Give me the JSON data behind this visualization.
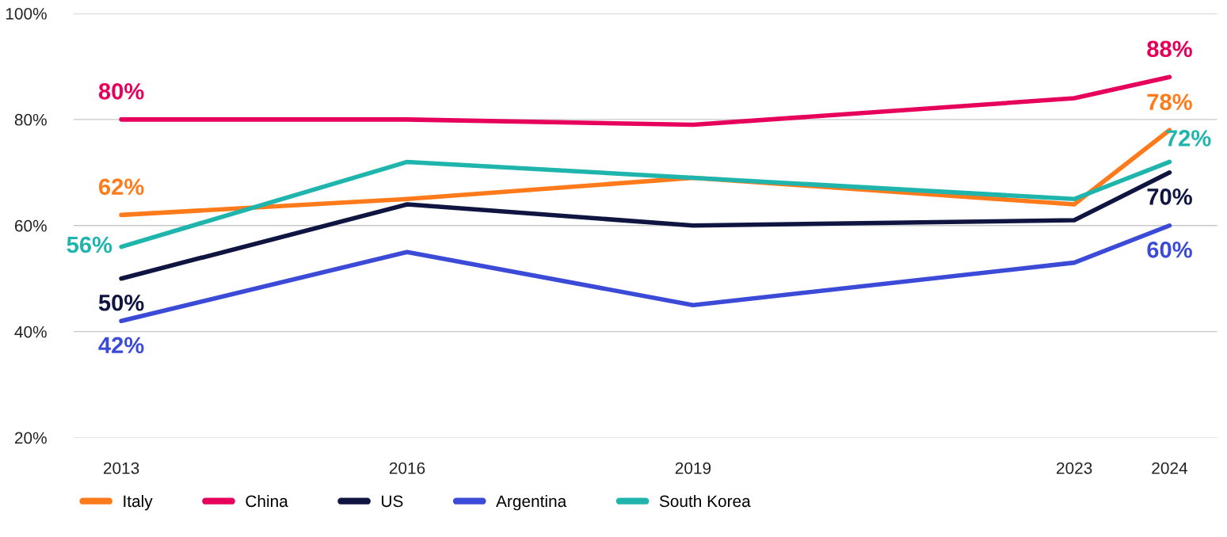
{
  "chart_data": {
    "type": "line",
    "x": [
      2013,
      2016,
      2019,
      2023,
      2024
    ],
    "xlim": [
      2012.5,
      2024.5
    ],
    "xticks": [
      2013,
      2016,
      2019,
      2023,
      2024
    ],
    "ylim": [
      20,
      100
    ],
    "yticks": [
      {
        "value": 20,
        "label": "20%"
      },
      {
        "value": 40,
        "label": "40%"
      },
      {
        "value": 60,
        "label": "60%"
      },
      {
        "value": 80,
        "label": "80%"
      },
      {
        "value": 100,
        "label": "100%"
      }
    ],
    "grid": "y",
    "legend": "bottom left",
    "marker": "none",
    "line_style": "solid",
    "series": [
      {
        "name": "Italy",
        "color": "#ff7a1a",
        "values": [
          62,
          65,
          69,
          64,
          78
        ],
        "value_labels": [
          "62%",
          null,
          null,
          null,
          "78%"
        ]
      },
      {
        "name": "China",
        "color": "#e6005c",
        "values": [
          80,
          80,
          79,
          84,
          88
        ],
        "value_labels": [
          "80%",
          null,
          null,
          null,
          "88%"
        ]
      },
      {
        "name": "US",
        "color": "#0f1440",
        "values": [
          50,
          64,
          60,
          61,
          70
        ],
        "value_labels": [
          "50%",
          null,
          null,
          null,
          "70%"
        ]
      },
      {
        "name": "Argentina",
        "color": "#3b4bd8",
        "values": [
          42,
          55,
          45,
          53,
          60
        ],
        "value_labels": [
          "42%",
          null,
          null,
          null,
          "60%"
        ]
      },
      {
        "name": "South Korea",
        "color": "#1fb5ad",
        "values": [
          56,
          72,
          69,
          65,
          72
        ],
        "value_labels": [
          "56%",
          null,
          null,
          null,
          "72%"
        ]
      }
    ]
  }
}
